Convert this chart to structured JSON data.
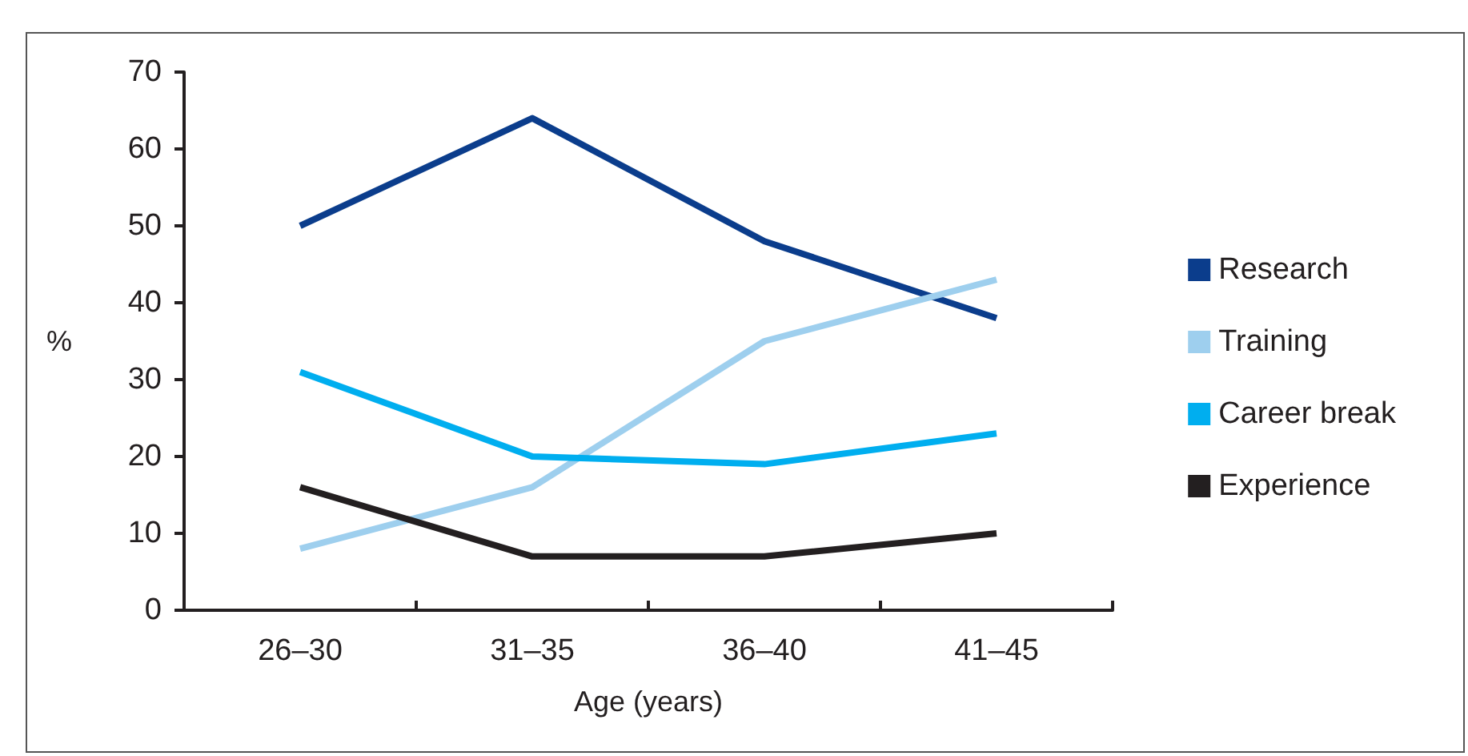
{
  "chart_data": {
    "type": "line",
    "xlabel": "Age (years)",
    "ylabel": "%",
    "categories": [
      "26–30",
      "31–35",
      "36–40",
      "41–45"
    ],
    "series": [
      {
        "name": "Research",
        "color": "#0b3d8c",
        "values": [
          50,
          64,
          48,
          38
        ]
      },
      {
        "name": "Training",
        "color": "#9ecfee",
        "values": [
          8,
          16,
          35,
          43
        ]
      },
      {
        "name": "Career break",
        "color": "#00aeef",
        "values": [
          31,
          20,
          19,
          23
        ]
      },
      {
        "name": "Experience",
        "color": "#231f20",
        "values": [
          16,
          7,
          7,
          10
        ]
      }
    ],
    "ylim": [
      0,
      70
    ],
    "yticks": [
      0,
      10,
      20,
      30,
      40,
      50,
      60,
      70
    ],
    "grid": false,
    "legend": "right",
    "marker": "none",
    "line_style": "solid"
  }
}
